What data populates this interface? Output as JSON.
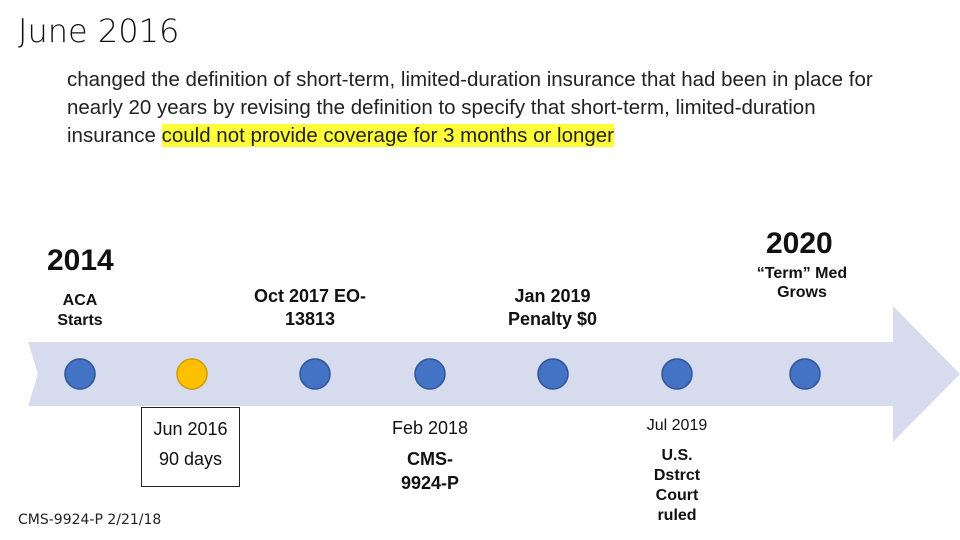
{
  "title": "June 2016",
  "body": {
    "text_before": "changed the definition of short-term, limited-duration insurance that had been in place for nearly 20 years by revising the definition to specify that short-term, limited-duration insurance ",
    "text_highlight": "could not provide coverage for 3 months or longer"
  },
  "timeline": {
    "start_year": "2014",
    "end_year": "2020",
    "above": [
      {
        "id": "aca",
        "label": "ACA Starts"
      },
      {
        "id": "oct",
        "label": "Oct 2017 EO-13813"
      },
      {
        "id": "jan",
        "label": "Jan 2019 Penalty $0"
      },
      {
        "id": "term",
        "label": "“Term” Med Grows"
      }
    ],
    "below": {
      "jun_date": "Jun 2016",
      "jun_days": "90 days",
      "feb_date": "Feb 2018",
      "feb_doc": "CMS-9924-P",
      "jul_date": "Jul 2019",
      "jul_event": "U.S. Dstrct Court ruled"
    },
    "colors": {
      "arrow": "#d6dced",
      "dot": "#4472c4",
      "dot_highlight": "#ffc000"
    }
  },
  "footer": "CMS-9924-P 2/21/18"
}
